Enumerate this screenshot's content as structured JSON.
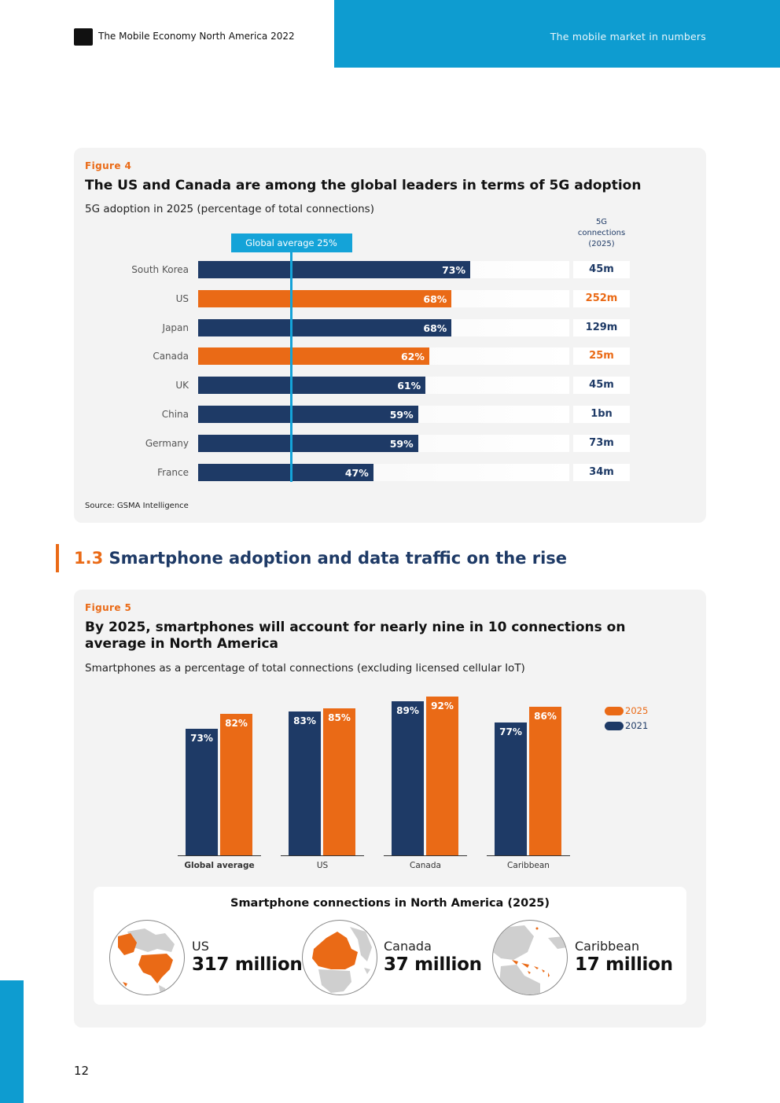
{
  "header": {
    "doc_title": "The Mobile Economy North America 2022",
    "section_title": "The mobile market in numbers"
  },
  "colors": {
    "navy": "#1e3a66",
    "orange": "#ea6a16",
    "blue": "#0e9cd0"
  },
  "figure4": {
    "label": "Figure 4",
    "title": "The US and Canada are among the global leaders in terms of 5G adoption",
    "subtitle": "5G adoption in 2025 (percentage of total connections)",
    "column_header": "5G connections (2025)",
    "average_label": "Global average 25%",
    "source": "Source: GSMA Intelligence"
  },
  "section": {
    "number": "1.3",
    "title": "Smartphone adoption and data traffic on the rise"
  },
  "figure5": {
    "label": "Figure 5",
    "title": "By 2025, smartphones will account for nearly nine in 10 connections on average in North America",
    "subtitle": "Smartphones as a percentage of total connections (excluding licensed cellular IoT)",
    "inset_title": "Smartphone connections in North America (2025)",
    "inset_items": [
      {
        "country": "US",
        "count": "317 million",
        "icon": "us-globe-icon"
      },
      {
        "country": "Canada",
        "count": "37 million",
        "icon": "canada-globe-icon"
      },
      {
        "country": "Caribbean",
        "count": "17 million",
        "icon": "caribbean-globe-icon"
      }
    ]
  },
  "chart_data": [
    {
      "type": "bar",
      "orientation": "horizontal",
      "title": "The US and Canada are among the global leaders in terms of 5G adoption",
      "subtitle": "5G adoption in 2025 (percentage of total connections)",
      "categories": [
        "South Korea",
        "US",
        "Japan",
        "Canada",
        "UK",
        "China",
        "Germany",
        "France"
      ],
      "values": [
        73,
        68,
        68,
        62,
        61,
        59,
        59,
        47
      ],
      "value_labels": [
        "73%",
        "68%",
        "68%",
        "62%",
        "61%",
        "59%",
        "59%",
        "47%"
      ],
      "highlight": [
        false,
        true,
        false,
        true,
        false,
        false,
        false,
        false
      ],
      "reference_line": {
        "label": "Global average 25%",
        "value": 25
      },
      "connections_2025": [
        "45m",
        "252m",
        "129m",
        "25m",
        "45m",
        "1bn",
        "73m",
        "34m"
      ],
      "xlim": [
        0,
        100
      ],
      "unit": "%"
    },
    {
      "type": "bar",
      "orientation": "vertical",
      "title": "By 2025, smartphones will account for nearly nine in 10 connections on average in North America",
      "subtitle": "Smartphones as a percentage of total connections (excluding licensed cellular IoT)",
      "categories": [
        "Global average",
        "US",
        "Canada",
        "Caribbean"
      ],
      "series": [
        {
          "name": "2021",
          "values": [
            73,
            83,
            89,
            77
          ],
          "labels": [
            "73%",
            "83%",
            "89%",
            "77%"
          ],
          "color": "#1e3a66"
        },
        {
          "name": "2025",
          "values": [
            82,
            85,
            92,
            86
          ],
          "labels": [
            "82%",
            "85%",
            "92%",
            "86%"
          ],
          "color": "#ea6a16"
        }
      ],
      "legend": [
        "2025",
        "2021"
      ],
      "ylim": [
        0,
        100
      ],
      "unit": "%"
    }
  ],
  "page_number": "12"
}
